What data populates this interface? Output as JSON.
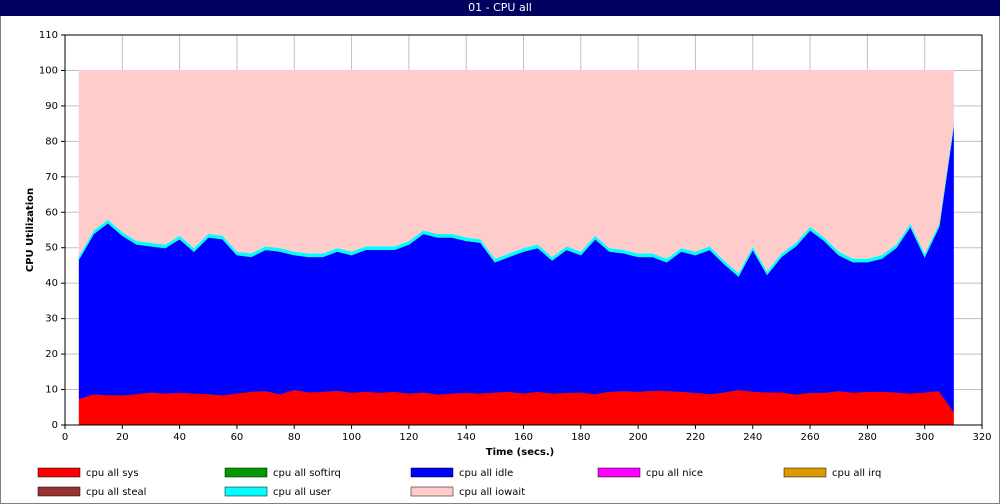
{
  "chart_data": {
    "type": "stacked-area",
    "title": "01 - CPU all",
    "xlabel": "Time (secs.)",
    "ylabel": "CPU Utilization",
    "xlim": [
      0,
      320
    ],
    "ylim": [
      0,
      110
    ],
    "xticks": [
      0,
      20,
      40,
      60,
      80,
      100,
      120,
      140,
      160,
      180,
      200,
      220,
      240,
      260,
      280,
      300,
      320
    ],
    "yticks": [
      0,
      10,
      20,
      30,
      40,
      50,
      60,
      70,
      80,
      90,
      100,
      110
    ],
    "grid": true,
    "legend": "bottom",
    "x": [
      5,
      10,
      15,
      20,
      25,
      30,
      35,
      40,
      45,
      50,
      55,
      60,
      65,
      70,
      75,
      80,
      85,
      90,
      95,
      100,
      105,
      110,
      115,
      120,
      125,
      130,
      135,
      140,
      145,
      150,
      155,
      160,
      165,
      170,
      175,
      180,
      185,
      190,
      195,
      200,
      205,
      210,
      215,
      220,
      225,
      230,
      235,
      240,
      245,
      250,
      255,
      260,
      265,
      270,
      275,
      280,
      285,
      290,
      295,
      300,
      305,
      310
    ],
    "series": [
      {
        "name": "cpu all sys",
        "color": "#ff0000",
        "values": [
          7.5,
          8.8,
          8.5,
          8.5,
          8.8,
          9.3,
          9,
          9.2,
          9,
          8.8,
          8.5,
          9,
          9.5,
          9.7,
          8.8,
          10,
          9.3,
          9.5,
          9.8,
          9.2,
          9.5,
          9.2,
          9.5,
          9,
          9.3,
          8.7,
          9,
          9.2,
          9,
          9.3,
          9.5,
          9,
          9.5,
          9,
          9.2,
          9.3,
          8.8,
          9.5,
          9.7,
          9.5,
          9.8,
          9.7,
          9.5,
          9.2,
          8.8,
          9.3,
          10,
          9.5,
          9.3,
          9.3,
          8.7,
          9.2,
          9.2,
          9.7,
          9.2,
          9.5,
          9.5,
          9.3,
          9,
          9.3,
          9.7,
          4
        ]
      },
      {
        "name": "cpu all softirq",
        "color": "#009900",
        "values": [
          0,
          0,
          0,
          0,
          0,
          0,
          0,
          0,
          0,
          0,
          0,
          0,
          0,
          0,
          0,
          0,
          0,
          0,
          0,
          0,
          0,
          0,
          0,
          0,
          0,
          0,
          0,
          0,
          0,
          0,
          0,
          0,
          0,
          0,
          0,
          0,
          0,
          0,
          0,
          0,
          0,
          0,
          0,
          0,
          0,
          0,
          0,
          0,
          0,
          0,
          0,
          0,
          0,
          0,
          0,
          0,
          0,
          0,
          0,
          0,
          0,
          0
        ]
      },
      {
        "name": "cpu all idle",
        "color": "#0000ff",
        "values": [
          39.5,
          45.2,
          48.5,
          45,
          42.2,
          41.2,
          41,
          43.3,
          40,
          44.2,
          44,
          39,
          38,
          39.8,
          40.2,
          38,
          38.2,
          38,
          39.2,
          38.8,
          40,
          40.3,
          40,
          42,
          44.7,
          44.3,
          44,
          42.8,
          42.5,
          36.7,
          38,
          40,
          40.5,
          37.5,
          40.3,
          38.7,
          43.7,
          39.5,
          38.8,
          38,
          37.7,
          36.3,
          39.5,
          38.8,
          40.7,
          36.2,
          32,
          40,
          33.2,
          38.2,
          41.8,
          45.8,
          42.8,
          38.3,
          36.8,
          36.5,
          37.5,
          40.7,
          47,
          38.2,
          46.3,
          80
        ]
      },
      {
        "name": "cpu all nice",
        "color": "#ff00ff",
        "values": [
          0,
          0,
          0,
          0,
          0,
          0,
          0,
          0,
          0,
          0,
          0,
          0,
          0,
          0,
          0,
          0,
          0,
          0,
          0,
          0,
          0,
          0,
          0,
          0,
          0,
          0,
          0,
          0,
          0,
          0,
          0,
          0,
          0,
          0,
          0,
          0,
          0,
          0,
          0,
          0,
          0,
          0,
          0,
          0,
          0,
          0,
          0,
          0,
          0,
          0,
          0,
          0,
          0,
          0,
          0,
          0,
          0,
          0,
          0,
          0,
          0,
          0
        ]
      },
      {
        "name": "cpu all irq",
        "color": "#dd9900",
        "values": [
          0,
          0,
          0,
          0,
          0,
          0,
          0,
          0,
          0,
          0,
          0,
          0,
          0,
          0,
          0,
          0,
          0,
          0,
          0,
          0,
          0,
          0,
          0,
          0,
          0,
          0,
          0,
          0,
          0,
          0,
          0,
          0,
          0,
          0,
          0,
          0,
          0,
          0,
          0,
          0,
          0,
          0,
          0,
          0,
          0,
          0,
          0,
          0,
          0,
          0,
          0,
          0,
          0,
          0,
          0,
          0,
          0,
          0,
          0,
          0,
          0,
          0
        ]
      },
      {
        "name": "cpu all steal",
        "color": "#993333",
        "values": [
          0,
          0,
          0,
          0,
          0,
          0,
          0,
          0,
          0,
          0,
          0,
          0,
          0,
          0,
          0,
          0,
          0,
          0,
          0,
          0,
          0,
          0,
          0,
          0,
          0,
          0,
          0,
          0,
          0,
          0,
          0,
          0,
          0,
          0,
          0,
          0,
          0,
          0,
          0,
          0,
          0,
          0,
          0,
          0,
          0,
          0,
          0,
          0,
          0,
          0,
          0,
          0,
          0,
          0,
          0,
          0,
          0,
          0,
          0,
          0,
          0,
          0
        ]
      },
      {
        "name": "cpu all user",
        "color": "#00ffff",
        "values": [
          1,
          1,
          1,
          1,
          1,
          1,
          1,
          1,
          1,
          1,
          1,
          1,
          1,
          1,
          1,
          1,
          1,
          1,
          1,
          1,
          1,
          1,
          1,
          1,
          1,
          1,
          1,
          1,
          1,
          1,
          1,
          1,
          1,
          1,
          1,
          1,
          1,
          1,
          1,
          1,
          1,
          1,
          1,
          1,
          1,
          1,
          1,
          1,
          1,
          1,
          1,
          1,
          1,
          1,
          1,
          1,
          1,
          1,
          1,
          1,
          1,
          1
        ]
      },
      {
        "name": "cpu all iowait",
        "color": "#ffcccc",
        "values": [
          52,
          45,
          42,
          45.5,
          48,
          48.5,
          49,
          46.5,
          50,
          46,
          46.5,
          51,
          51.5,
          49.5,
          50,
          51,
          51.5,
          51.5,
          50,
          51,
          49.5,
          49.5,
          49.5,
          48,
          45,
          46,
          46,
          47,
          47.5,
          53,
          51.5,
          50,
          49,
          52.5,
          49.5,
          51,
          46.5,
          50,
          50.5,
          51.5,
          51.5,
          53,
          50,
          51,
          49.5,
          53.5,
          57,
          49.5,
          56.5,
          51.5,
          48.5,
          44,
          47,
          51,
          53,
          53,
          52,
          49,
          43,
          51.5,
          43,
          15
        ]
      }
    ]
  }
}
